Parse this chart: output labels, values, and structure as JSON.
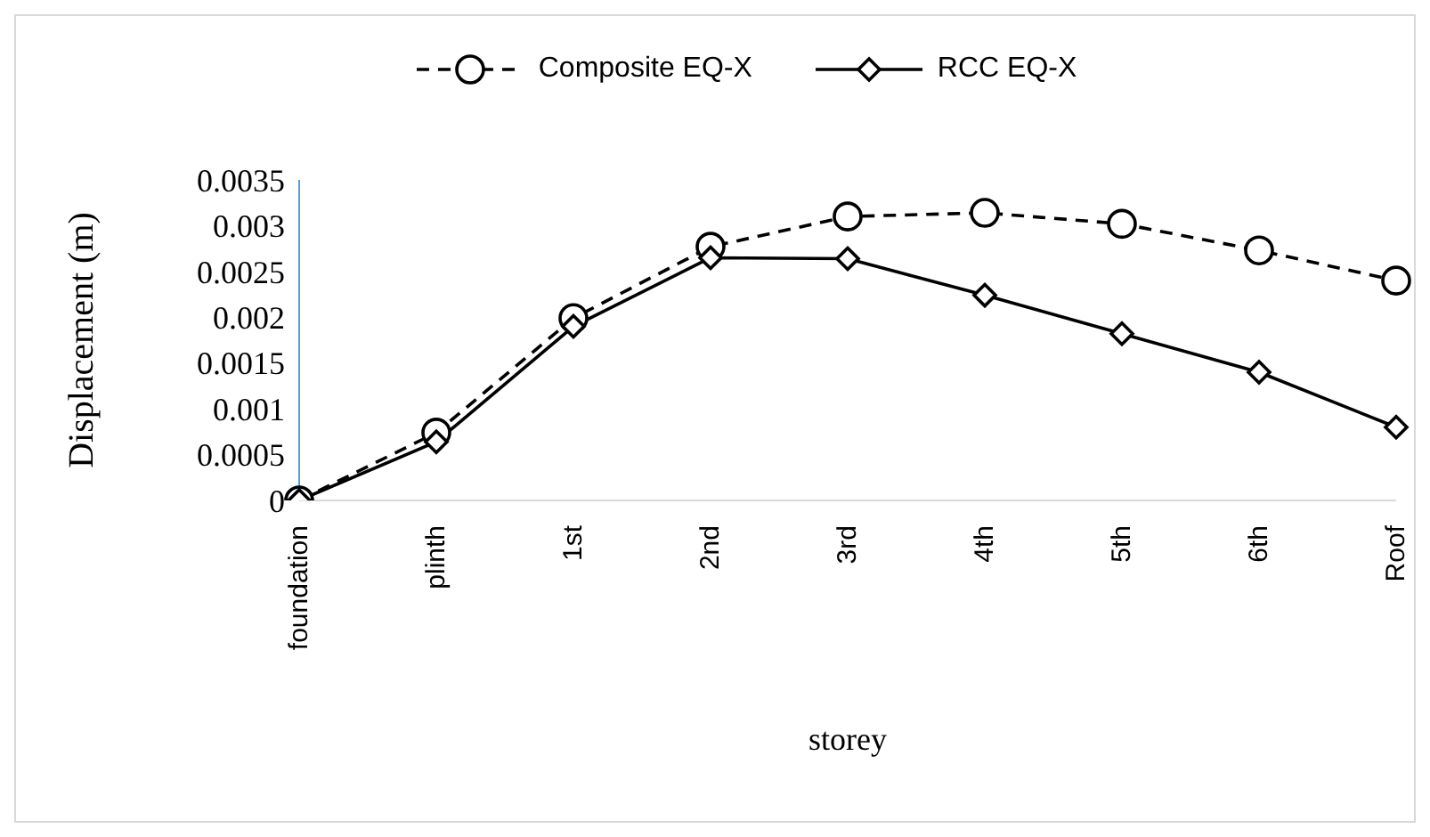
{
  "chart_data": {
    "type": "line",
    "xlabel": "storey",
    "ylabel": "Displacement  (m)",
    "categories": [
      "foundation",
      "plinth",
      "1st",
      "2nd",
      "3rd",
      "4th",
      "5th",
      "6th",
      "Roof"
    ],
    "series": [
      {
        "name": "Composite EQ-X",
        "color": "#000000",
        "marker": "circle",
        "line_style": "dashed",
        "values": [
          0,
          0.00074,
          0.00199,
          0.00277,
          0.0031,
          0.00314,
          0.00302,
          0.00273,
          0.0024
        ]
      },
      {
        "name": "RCC EQ-X",
        "color": "#000000",
        "marker": "diamond",
        "line_style": "solid",
        "values": [
          0,
          0.00064,
          0.0019,
          0.00265,
          0.00264,
          0.00224,
          0.00182,
          0.0014,
          0.0008
        ]
      }
    ],
    "ylim": [
      0,
      0.0035
    ],
    "yticks": [
      0,
      0.0005,
      0.001,
      0.0015,
      0.002,
      0.0025,
      0.003,
      0.0035
    ],
    "grid": false,
    "legend": "top"
  }
}
